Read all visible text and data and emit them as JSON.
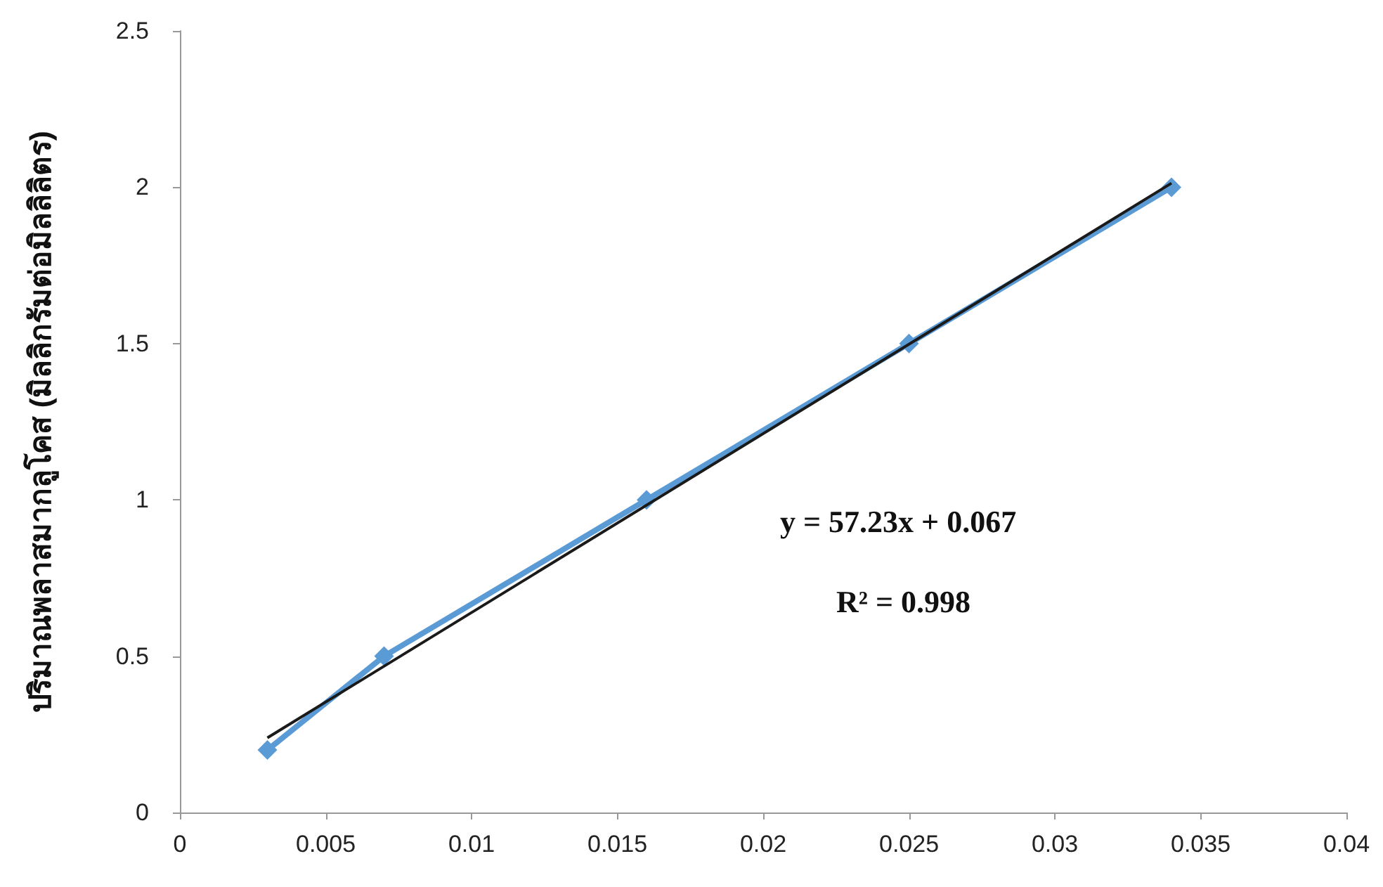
{
  "chart_data": {
    "type": "line",
    "ylabel": "ปริมาณพลาสมากลูโคส (มิลลิกรัมต่อมิลลิลิตร)",
    "xlim": [
      0,
      0.04
    ],
    "xticks": [
      0,
      0.005,
      0.01,
      0.015,
      0.02,
      0.025,
      0.03,
      0.035,
      0.04
    ],
    "ylim": [
      0,
      2.5
    ],
    "yticks": [
      0,
      0.5,
      1,
      1.5,
      2,
      2.5
    ],
    "grid": false,
    "marker": "diamond",
    "line_style": "solid",
    "series": [
      {
        "color": "#5b9bd5",
        "x": [
          0.003,
          0.007,
          0.016,
          0.025,
          0.034
        ],
        "values": [
          0.2,
          0.5,
          1.0,
          1.5,
          2.0
        ]
      },
      {
        "color": "#1a1a1a",
        "marker": "none",
        "x": [
          0.003,
          0.034
        ],
        "values": [
          0.239,
          2.013
        ]
      }
    ],
    "annotations": [
      "y = 57.23x + 0.067",
      "R² = 0.998"
    ]
  }
}
